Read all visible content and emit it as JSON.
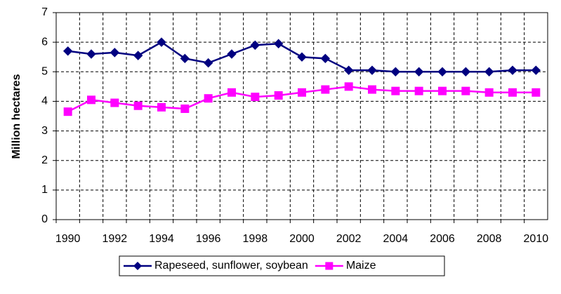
{
  "chart_data": {
    "type": "line",
    "y_label": "Million hectares",
    "categories": [
      "1990",
      null,
      "1992",
      null,
      "1994",
      null,
      "1996",
      null,
      "1998",
      null,
      "2000",
      null,
      "2002",
      null,
      "2004",
      null,
      "2006",
      null,
      "2008",
      null,
      "2010"
    ],
    "series": [
      {
        "name": "Rapeseed, sunflower, soybean",
        "color": "#000080",
        "marker": "diamond",
        "values": [
          5.7,
          5.6,
          5.65,
          5.55,
          6.0,
          5.45,
          5.3,
          5.6,
          5.9,
          5.95,
          5.5,
          5.45,
          5.05,
          5.05,
          5.0,
          5.0,
          5.0,
          5.0,
          5.0,
          5.05,
          5.05
        ]
      },
      {
        "name": "Maize",
        "color": "#ff00ff",
        "marker": "square",
        "values": [
          3.65,
          4.05,
          3.95,
          3.85,
          3.8,
          3.75,
          4.1,
          4.3,
          4.15,
          4.2,
          4.3,
          4.4,
          4.5,
          4.4,
          4.35,
          4.35,
          4.35,
          4.35,
          4.3,
          4.3,
          4.3
        ]
      }
    ],
    "ylim": [
      0,
      7
    ],
    "yticks": [
      0,
      1,
      2,
      3,
      4,
      5,
      6,
      7
    ],
    "grid": true,
    "legend": "bottom"
  }
}
